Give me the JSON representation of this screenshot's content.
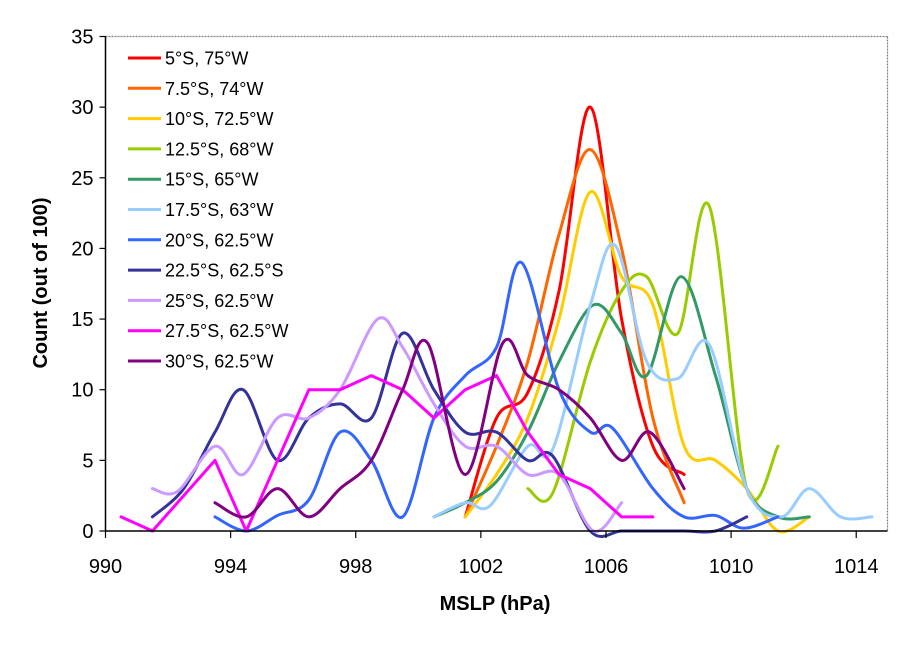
{
  "chart_data": {
    "type": "line",
    "title": "",
    "xlabel": "MSLP (hPa)",
    "ylabel": "Count (out of 100)",
    "xlim": [
      990,
      1015
    ],
    "ylim": [
      0,
      35
    ],
    "xticks": [
      990,
      994,
      998,
      1002,
      1006,
      1010,
      1014
    ],
    "yticks": [
      0,
      5,
      10,
      15,
      20,
      25,
      30,
      35
    ],
    "grid": false,
    "legend_position": "top-left",
    "smoothed": true,
    "series": [
      {
        "name": "5°S, 75°W",
        "color": "#FF0000",
        "smooth": true,
        "points": [
          [
            1001.5,
            1
          ],
          [
            1002.5,
            8
          ],
          [
            1003.5,
            9.8
          ],
          [
            1004.5,
            17
          ],
          [
            1005.5,
            30
          ],
          [
            1006.5,
            15
          ],
          [
            1007.5,
            6
          ],
          [
            1008.5,
            4
          ]
        ]
      },
      {
        "name": "7.5°S, 74°W",
        "color": "#FF6600",
        "smooth": true,
        "points": [
          [
            1001.5,
            1
          ],
          [
            1002.5,
            6
          ],
          [
            1003.5,
            12
          ],
          [
            1004.5,
            21
          ],
          [
            1005.5,
            27
          ],
          [
            1006.5,
            20
          ],
          [
            1007.5,
            8
          ],
          [
            1008.5,
            2
          ]
        ]
      },
      {
        "name": "10°S, 72.5°W",
        "color": "#FFCC00",
        "smooth": true,
        "points": [
          [
            1001.5,
            1
          ],
          [
            1002.5,
            4
          ],
          [
            1003.5,
            8
          ],
          [
            1004.5,
            15
          ],
          [
            1005.5,
            24
          ],
          [
            1006.5,
            18
          ],
          [
            1007.5,
            16
          ],
          [
            1008.5,
            6
          ],
          [
            1009.5,
            5
          ],
          [
            1010.5,
            3
          ],
          [
            1011.5,
            0
          ],
          [
            1012.5,
            1
          ]
        ]
      },
      {
        "name": "12.5°S, 68°W",
        "color": "#99CC00",
        "smooth": true,
        "points": [
          [
            1003.5,
            3
          ],
          [
            1004.3,
            2.7
          ],
          [
            1005.5,
            12
          ],
          [
            1006.5,
            17
          ],
          [
            1007.3,
            18
          ],
          [
            1008.3,
            14
          ],
          [
            1009.3,
            23
          ],
          [
            1010.5,
            3
          ],
          [
            1011.5,
            6
          ]
        ]
      },
      {
        "name": "15°S, 65°W",
        "color": "#339966",
        "smooth": true,
        "points": [
          [
            1000.5,
            1
          ],
          [
            1001.5,
            2
          ],
          [
            1002.5,
            3.5
          ],
          [
            1003.5,
            7
          ],
          [
            1004.5,
            12
          ],
          [
            1005.6,
            16
          ],
          [
            1006.5,
            14
          ],
          [
            1007.3,
            11
          ],
          [
            1008.4,
            18
          ],
          [
            1009.5,
            11
          ],
          [
            1010.5,
            3
          ],
          [
            1011.5,
            1
          ],
          [
            1012.5,
            1
          ]
        ]
      },
      {
        "name": "17.5°S, 63°W",
        "color": "#99CCFF",
        "smooth": true,
        "points": [
          [
            1000.5,
            1
          ],
          [
            1001.5,
            2
          ],
          [
            1002.3,
            1.8
          ],
          [
            1003.5,
            6
          ],
          [
            1004.3,
            5.8
          ],
          [
            1005.5,
            16
          ],
          [
            1006.3,
            20.2
          ],
          [
            1007.3,
            12
          ],
          [
            1008.3,
            10.8
          ],
          [
            1009.3,
            13.2
          ],
          [
            1010.5,
            3
          ],
          [
            1011.6,
            1
          ],
          [
            1012.5,
            3
          ],
          [
            1013.5,
            1
          ],
          [
            1014.5,
            1
          ]
        ]
      },
      {
        "name": "20°S, 62.5°W",
        "color": "#3366FF",
        "smooth": true,
        "points": [
          [
            993.5,
            1
          ],
          [
            994.5,
            0
          ],
          [
            995.5,
            1.1
          ],
          [
            996.5,
            2.2
          ],
          [
            997.5,
            7
          ],
          [
            998.5,
            5
          ],
          [
            999.5,
            1
          ],
          [
            1000.5,
            8
          ],
          [
            1001.5,
            11
          ],
          [
            1002.5,
            13
          ],
          [
            1003.3,
            19
          ],
          [
            1004.5,
            10
          ],
          [
            1005.5,
            7
          ],
          [
            1006.2,
            7.3
          ],
          [
            1007.5,
            3
          ],
          [
            1008.5,
            1
          ],
          [
            1009.5,
            1.1
          ],
          [
            1010.4,
            0.2
          ],
          [
            1011.5,
            1
          ]
        ]
      },
      {
        "name": "22.5°S, 62.5°S",
        "color": "#333399",
        "smooth": true,
        "points": [
          [
            991.5,
            1
          ],
          [
            992.5,
            3
          ],
          [
            993.5,
            7
          ],
          [
            994.4,
            10
          ],
          [
            995.5,
            5
          ],
          [
            996.5,
            8
          ],
          [
            997.5,
            9
          ],
          [
            998.5,
            8
          ],
          [
            999.5,
            14
          ],
          [
            1000.5,
            10
          ],
          [
            1001.5,
            7
          ],
          [
            1002.5,
            7
          ],
          [
            1003.5,
            5
          ],
          [
            1004.3,
            5.3
          ],
          [
            1005.5,
            0
          ],
          [
            1006.5,
            0
          ],
          [
            1007.5,
            0
          ],
          [
            1008.5,
            0
          ],
          [
            1009.5,
            0
          ],
          [
            1010.5,
            1
          ]
        ]
      },
      {
        "name": "25°S, 62.5°W",
        "color": "#CC99FF",
        "smooth": true,
        "points": [
          [
            991.5,
            3
          ],
          [
            992.3,
            2.8
          ],
          [
            993.5,
            6
          ],
          [
            994.4,
            4
          ],
          [
            995.5,
            8
          ],
          [
            996.5,
            8
          ],
          [
            997.5,
            10
          ],
          [
            998.7,
            15
          ],
          [
            999.5,
            13
          ],
          [
            1000.5,
            9
          ],
          [
            1001.5,
            6
          ],
          [
            1002.5,
            6
          ],
          [
            1003.5,
            4
          ],
          [
            1004.5,
            4
          ],
          [
            1005.6,
            0
          ],
          [
            1006.5,
            2
          ]
        ]
      },
      {
        "name": "27.5°S, 62.5°W",
        "color": "#FF00FF",
        "smooth": false,
        "points": [
          [
            990.5,
            1
          ],
          [
            991.5,
            0
          ],
          [
            993.5,
            5
          ],
          [
            994.5,
            0
          ],
          [
            996.5,
            10
          ],
          [
            997.5,
            10
          ],
          [
            998.5,
            11
          ],
          [
            999.5,
            10
          ],
          [
            1000.5,
            8
          ],
          [
            1001.5,
            10
          ],
          [
            1002.5,
            11
          ],
          [
            1003.5,
            7
          ],
          [
            1004.5,
            4
          ],
          [
            1005.5,
            3
          ],
          [
            1006.5,
            1
          ],
          [
            1007.5,
            1
          ]
        ]
      },
      {
        "name": "30°S, 62.5°W",
        "color": "#800080",
        "smooth": true,
        "points": [
          [
            993.5,
            2
          ],
          [
            994.5,
            1
          ],
          [
            995.5,
            3
          ],
          [
            996.5,
            1
          ],
          [
            997.5,
            3
          ],
          [
            998.5,
            5
          ],
          [
            999.5,
            10
          ],
          [
            1000.3,
            13.3
          ],
          [
            1001.5,
            4
          ],
          [
            1002.7,
            13.3
          ],
          [
            1003.5,
            11
          ],
          [
            1004.5,
            10
          ],
          [
            1005.5,
            8
          ],
          [
            1006.5,
            5
          ],
          [
            1007.4,
            7
          ],
          [
            1008.5,
            3
          ]
        ]
      }
    ]
  }
}
